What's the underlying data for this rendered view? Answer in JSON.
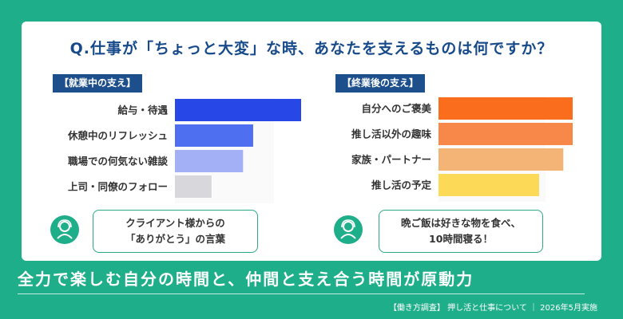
{
  "colors": {
    "background": "#1fae8a",
    "card": "#ffffff",
    "heading": "#174a8a",
    "section_header": "#1d4f8c"
  },
  "question": "Q.仕事が「ちょっと大変」な時、あなたを支えるものは何ですか？",
  "chart_data": [
    {
      "type": "bar",
      "orientation": "horizontal",
      "title": "【就業中の支え】",
      "categories": [
        "給与・待遇",
        "休憩中のリフレッシュ",
        "職場での何気ない雑談",
        "上司・同僚のフォロー"
      ],
      "values": [
        100,
        62,
        54,
        29
      ],
      "colors": [
        "#2748e6",
        "#4e6ff0",
        "#a3b0f5",
        "#d8d8dc"
      ],
      "grid": false,
      "xlabel": "",
      "ylabel": ""
    },
    {
      "type": "bar",
      "orientation": "horizontal",
      "title": "【終業後の支え】",
      "categories": [
        "自分へのご褒美",
        "推し活以外の趣味",
        "家族・パートナー",
        "推し活の予定"
      ],
      "values": [
        100,
        100,
        93,
        75
      ],
      "colors": [
        "#f96d1c",
        "#f7884a",
        "#f3b476",
        "#fcd957"
      ],
      "grid": false,
      "xlabel": "",
      "ylabel": ""
    }
  ],
  "comments": {
    "left": [
      "クライアント様からの",
      "「ありがとう」の言葉"
    ],
    "right": [
      "晩ご飯は好きな物を食べ、",
      "10時間寝る！"
    ]
  },
  "icons": {
    "left": "person-headset-icon",
    "right": "person-headset-icon"
  },
  "tagline": "全力で楽しむ自分の時間と、仲間と支え合う時間が原動力",
  "footer": "【働き方調査】 押し活と仕事について ｜ 2026年5月実施"
}
